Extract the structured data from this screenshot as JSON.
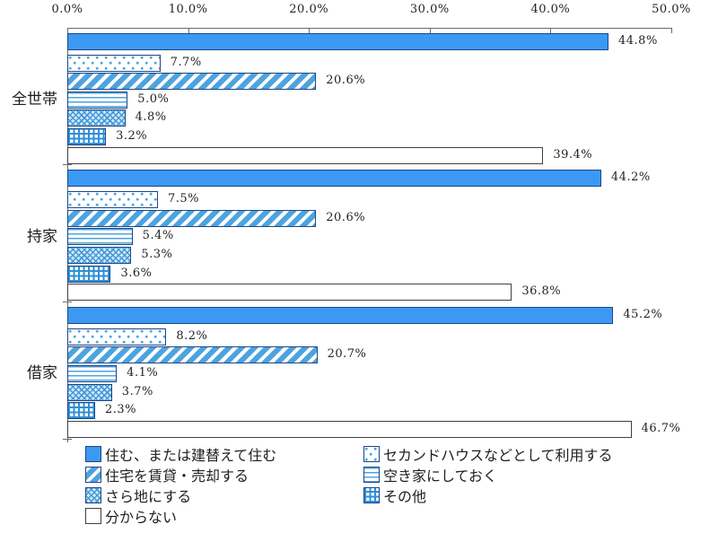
{
  "chart_data": {
    "type": "bar",
    "orientation": "horizontal",
    "title": "",
    "unit": "%",
    "x_axis": {
      "position": "top",
      "min": 0,
      "max": 50,
      "tick_step": 10,
      "tick_labels": [
        "0.0%",
        "10.0%",
        "20.0%",
        "30.0%",
        "40.0%",
        "50.0%"
      ]
    },
    "categories": [
      "全世帯",
      "持家",
      "借家"
    ],
    "series": [
      {
        "name": "住む、または建替えて住む",
        "pattern": "solid",
        "values": [
          44.8,
          44.2,
          45.2
        ]
      },
      {
        "name": "セカンドハウスなどとして利用する",
        "pattern": "chevron",
        "values": [
          7.7,
          7.5,
          8.2
        ]
      },
      {
        "name": "住宅を賃貸・売却する",
        "pattern": "diag",
        "values": [
          20.6,
          20.6,
          20.7
        ]
      },
      {
        "name": "空き家にしておく",
        "pattern": "hlines",
        "values": [
          5.0,
          5.4,
          4.1
        ]
      },
      {
        "name": "さら地にする",
        "pattern": "cross",
        "values": [
          4.8,
          5.3,
          3.7
        ]
      },
      {
        "name": "その他",
        "pattern": "grid",
        "values": [
          3.2,
          3.6,
          2.3
        ]
      },
      {
        "name": "分からない",
        "pattern": "white",
        "values": [
          39.4,
          36.8,
          46.7
        ]
      }
    ],
    "value_labels": [
      [
        "44.8%",
        "7.7%",
        "20.6%",
        "5.0%",
        "4.8%",
        "3.2%",
        "39.4%"
      ],
      [
        "44.2%",
        "7.5%",
        "20.6%",
        "5.4%",
        "5.3%",
        "3.6%",
        "36.8%"
      ],
      [
        "45.2%",
        "8.2%",
        "20.7%",
        "4.1%",
        "3.7%",
        "2.3%",
        "46.7%"
      ]
    ],
    "legend": {
      "position": "bottom",
      "columns": 2
    },
    "grid": false,
    "colors": {
      "solid_fill": "#3b99f3",
      "pattern_blue": "#4da3df",
      "bar_border": "#1c4587",
      "white_bar_border": "#3f3f3f",
      "axis": "#6b6b6b",
      "text": "#1f1f1f",
      "background": "#ffffff"
    }
  }
}
